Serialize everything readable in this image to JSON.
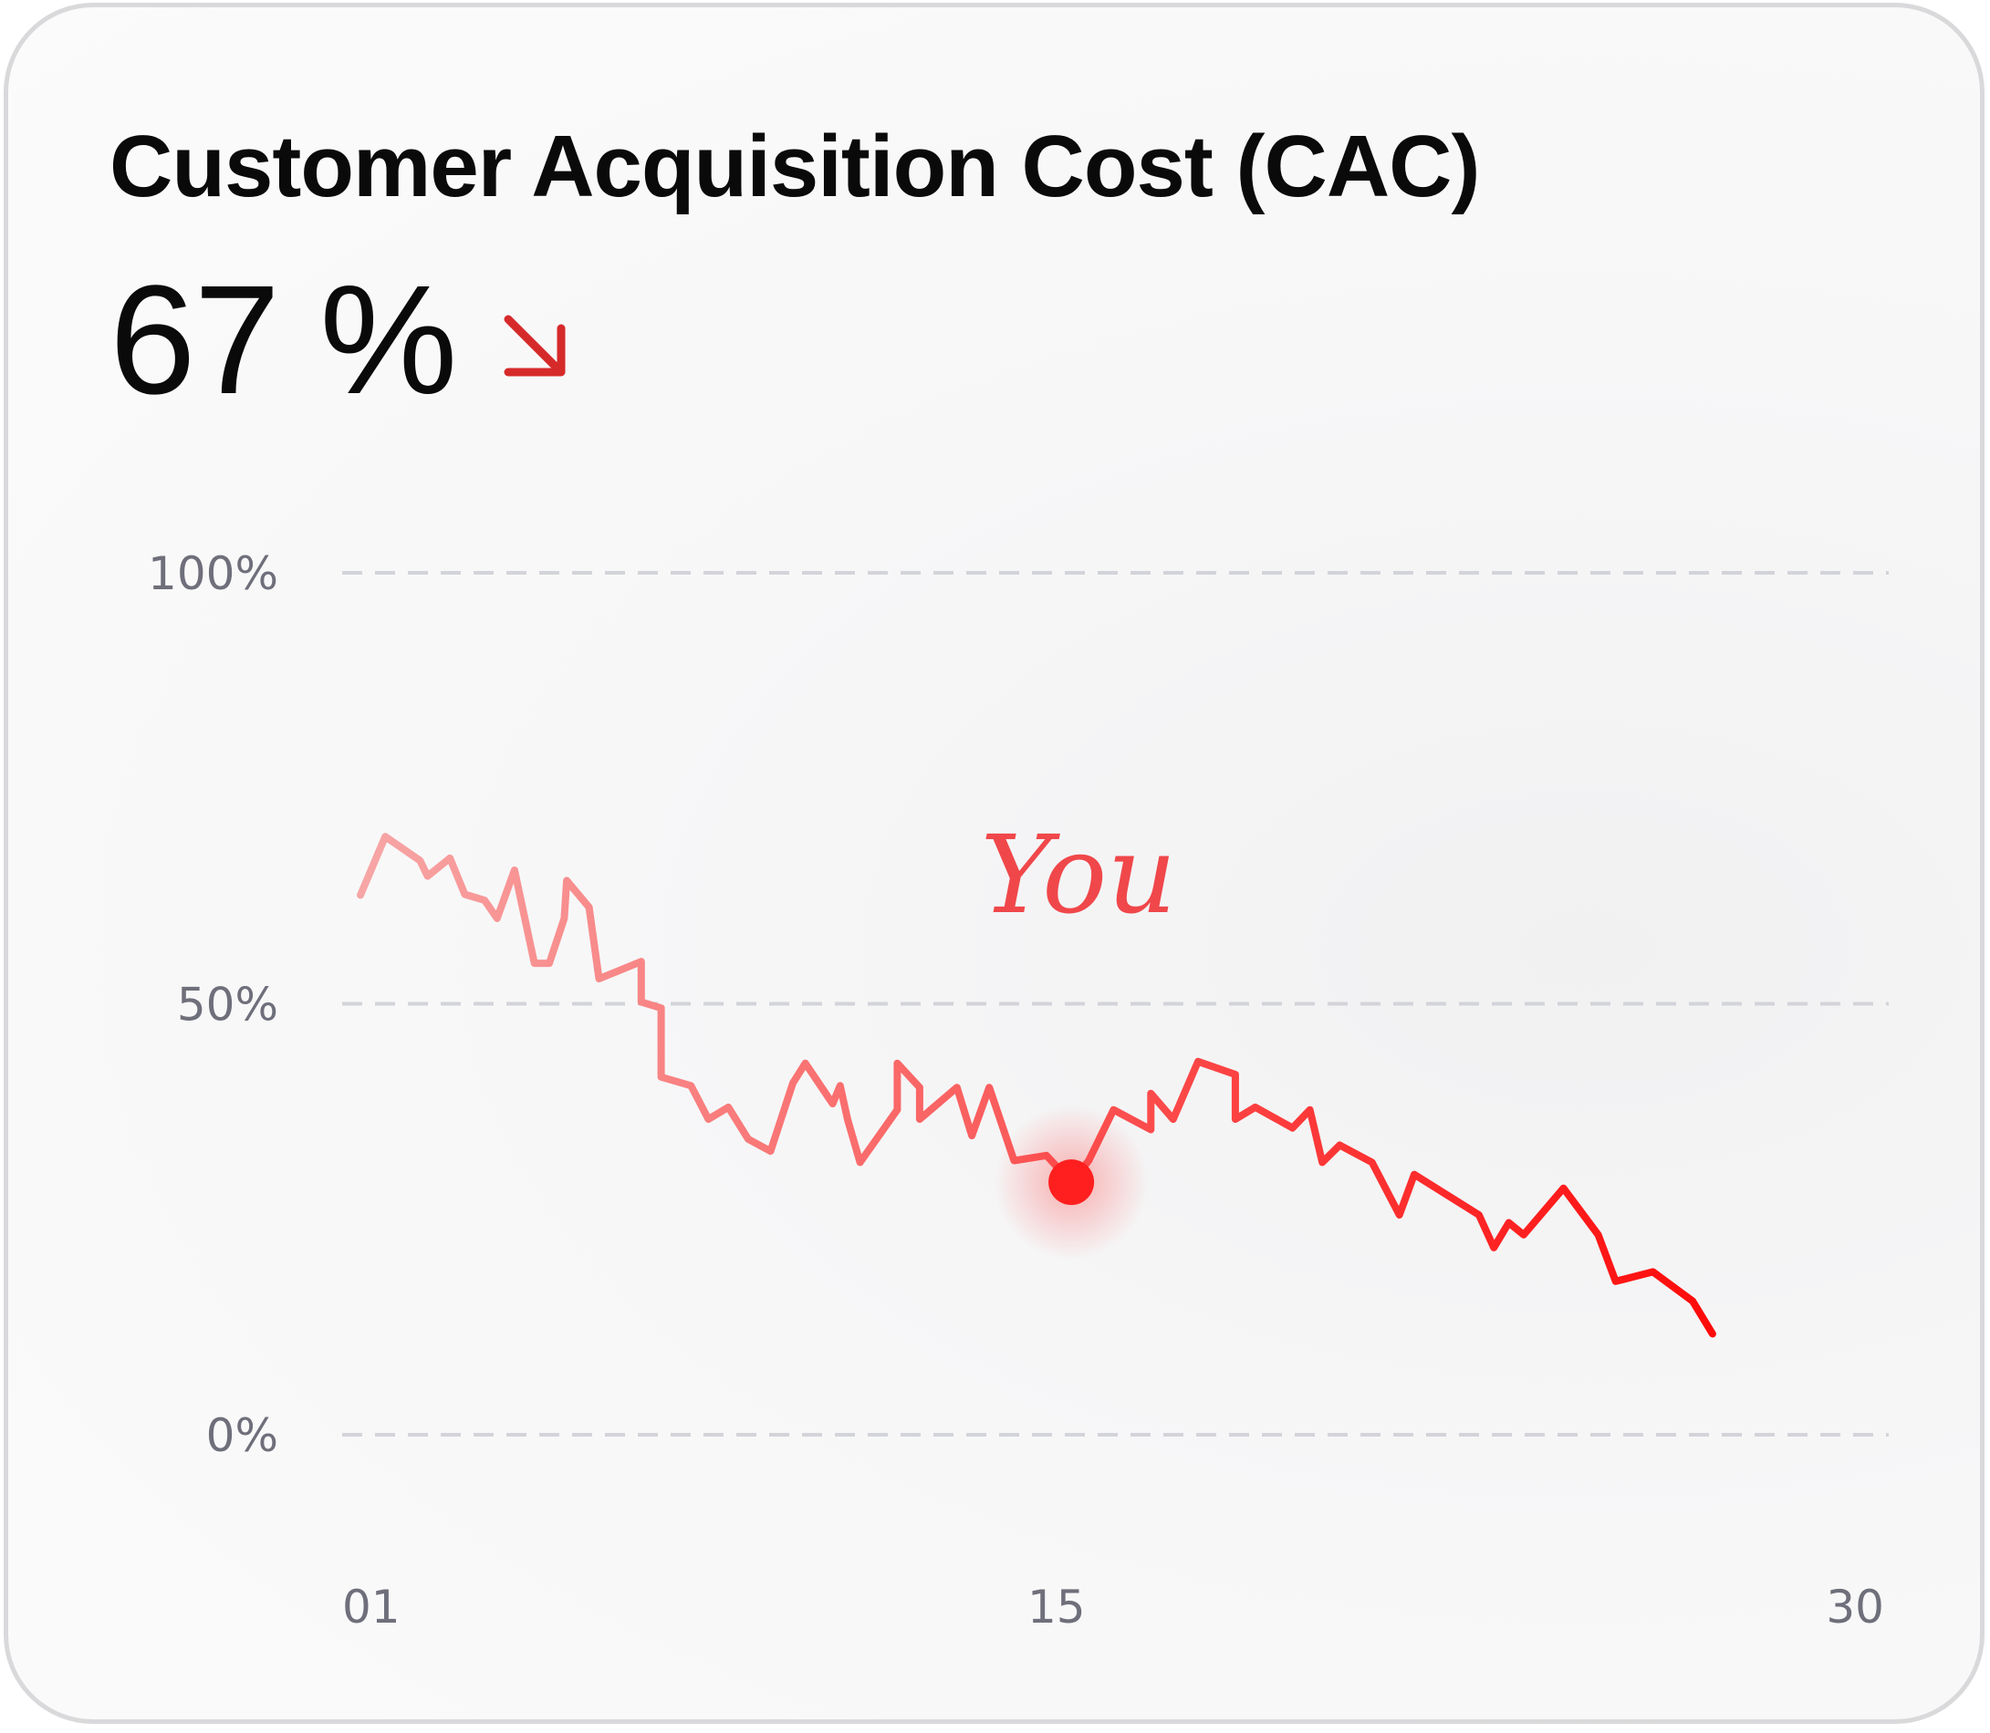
{
  "card": {
    "title": "Customer Acquisition Cost (CAC)",
    "metric_value": "67 %",
    "trend_icon": "arrow-down-right-icon",
    "trend_color": "#d62a2a"
  },
  "chart_data": {
    "type": "line",
    "title": "Customer Acquisition Cost (CAC)",
    "xlabel": "",
    "ylabel": "",
    "x_range": [
      1,
      30
    ],
    "ylim": [
      0,
      100
    ],
    "y_ticks": [
      {
        "value": 100,
        "label": "100%"
      },
      {
        "value": 50,
        "label": "50%"
      },
      {
        "value": 0,
        "label": "0%"
      }
    ],
    "x_ticks": [
      {
        "value": 1,
        "label": "01"
      },
      {
        "value": 15,
        "label": "15"
      },
      {
        "value": 30,
        "label": "30"
      }
    ],
    "grid": "horizontal-dashed",
    "line_color_start": "#f7a6a6",
    "line_color_end": "#ff0000",
    "marker_color": "#ff1f1f",
    "annotation": {
      "text": "You",
      "x": 15.3,
      "y": 29.3
    },
    "series": [
      {
        "name": "CAC",
        "points": [
          [
            1.0,
            62.6
          ],
          [
            1.5,
            69.4
          ],
          [
            2.2,
            66.6
          ],
          [
            2.35,
            64.8
          ],
          [
            2.8,
            66.9
          ],
          [
            3.1,
            62.7
          ],
          [
            3.5,
            62.0
          ],
          [
            3.75,
            59.9
          ],
          [
            4.1,
            65.5
          ],
          [
            4.5,
            54.7
          ],
          [
            4.8,
            54.7
          ],
          [
            5.1,
            59.9
          ],
          [
            5.15,
            64.3
          ],
          [
            5.6,
            61.2
          ],
          [
            5.8,
            52.9
          ],
          [
            6.65,
            54.9
          ],
          [
            6.65,
            50.2
          ],
          [
            7.05,
            49.5
          ],
          [
            7.05,
            41.5
          ],
          [
            7.65,
            40.5
          ],
          [
            8.0,
            36.6
          ],
          [
            8.4,
            38.0
          ],
          [
            8.8,
            34.3
          ],
          [
            9.25,
            32.9
          ],
          [
            9.7,
            40.8
          ],
          [
            9.95,
            43.1
          ],
          [
            10.5,
            38.4
          ],
          [
            10.65,
            40.5
          ],
          [
            10.8,
            36.6
          ],
          [
            11.05,
            31.6
          ],
          [
            11.8,
            37.7
          ],
          [
            11.8,
            43.1
          ],
          [
            12.25,
            40.3
          ],
          [
            12.25,
            36.6
          ],
          [
            13.0,
            40.3
          ],
          [
            13.3,
            34.7
          ],
          [
            13.65,
            40.3
          ],
          [
            14.15,
            31.8
          ],
          [
            14.8,
            32.4
          ],
          [
            15.3,
            29.3
          ],
          [
            15.65,
            31.8
          ],
          [
            16.15,
            37.7
          ],
          [
            16.9,
            35.4
          ],
          [
            16.9,
            39.6
          ],
          [
            17.35,
            36.6
          ],
          [
            17.85,
            43.3
          ],
          [
            18.6,
            41.8
          ],
          [
            18.6,
            36.6
          ],
          [
            19.0,
            38.0
          ],
          [
            19.75,
            35.6
          ],
          [
            20.1,
            37.7
          ],
          [
            20.35,
            31.6
          ],
          [
            20.7,
            33.6
          ],
          [
            21.35,
            31.6
          ],
          [
            21.9,
            25.5
          ],
          [
            22.2,
            30.2
          ],
          [
            23.5,
            25.5
          ],
          [
            23.8,
            21.7
          ],
          [
            24.1,
            24.6
          ],
          [
            24.4,
            23.2
          ],
          [
            25.2,
            28.6
          ],
          [
            25.9,
            23.2
          ],
          [
            26.25,
            17.8
          ],
          [
            27.0,
            18.9
          ],
          [
            27.8,
            15.5
          ],
          [
            28.2,
            11.7
          ]
        ]
      }
    ]
  }
}
